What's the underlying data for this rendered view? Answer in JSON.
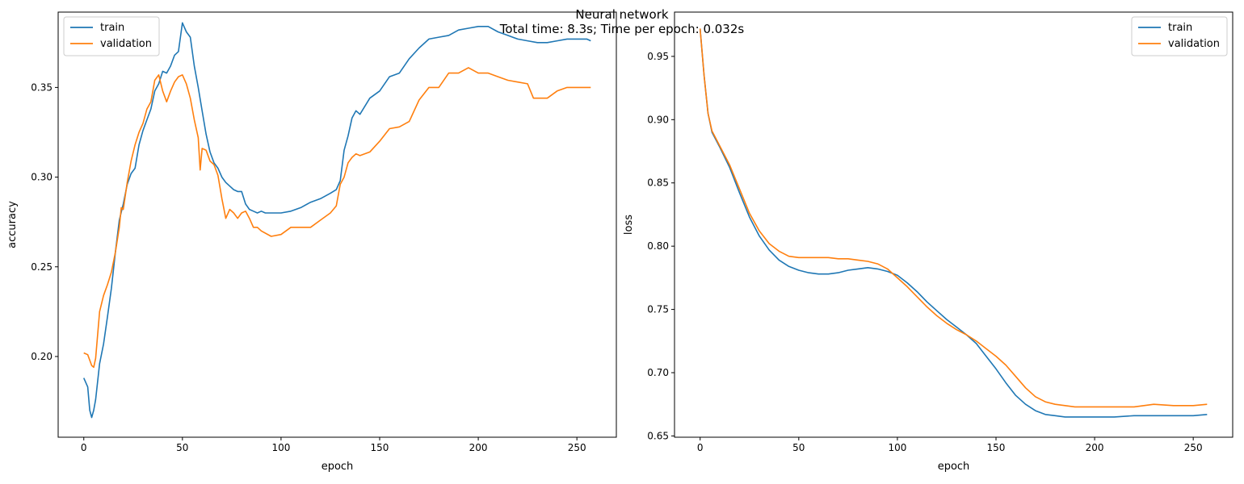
{
  "suptitle": {
    "line1": "Neural network",
    "line2": "Total time: 8.3s; Time per epoch: 0.032s"
  },
  "colors": {
    "train": "#1f77b4",
    "validation": "#ff7f0e"
  },
  "chart_data": [
    {
      "type": "line",
      "xlabel": "epoch",
      "ylabel": "accuracy",
      "xlim": [
        -13,
        270
      ],
      "ylim": [
        0.155,
        0.392
      ],
      "xticks": [
        0,
        50,
        100,
        150,
        200,
        250
      ],
      "yticks": [
        0.2,
        0.25,
        0.3,
        0.35
      ],
      "ytick_labels": [
        "0.20",
        "0.25",
        "0.30",
        "0.35"
      ],
      "legend": "top-left",
      "grid": false,
      "series": [
        {
          "name": "train",
          "x": [
            0,
            2,
            3,
            4,
            5,
            6,
            8,
            10,
            12,
            14,
            16,
            18,
            20,
            22,
            24,
            26,
            28,
            30,
            32,
            34,
            36,
            38,
            40,
            42,
            44,
            46,
            48,
            50,
            52,
            54,
            56,
            58,
            60,
            62,
            64,
            66,
            68,
            70,
            72,
            74,
            76,
            78,
            80,
            82,
            84,
            86,
            88,
            90,
            92,
            95,
            100,
            105,
            110,
            115,
            120,
            125,
            128,
            130,
            132,
            134,
            136,
            138,
            140,
            145,
            150,
            155,
            160,
            165,
            170,
            175,
            180,
            185,
            190,
            195,
            200,
            205,
            210,
            215,
            220,
            225,
            230,
            235,
            240,
            245,
            250,
            255,
            257
          ],
          "y": [
            0.188,
            0.183,
            0.17,
            0.166,
            0.17,
            0.176,
            0.196,
            0.207,
            0.222,
            0.238,
            0.258,
            0.276,
            0.285,
            0.296,
            0.302,
            0.305,
            0.318,
            0.326,
            0.332,
            0.338,
            0.348,
            0.352,
            0.359,
            0.358,
            0.362,
            0.368,
            0.37,
            0.386,
            0.381,
            0.378,
            0.362,
            0.35,
            0.337,
            0.324,
            0.314,
            0.308,
            0.305,
            0.3,
            0.297,
            0.295,
            0.293,
            0.292,
            0.292,
            0.285,
            0.282,
            0.281,
            0.28,
            0.281,
            0.28,
            0.28,
            0.28,
            0.281,
            0.283,
            0.286,
            0.288,
            0.291,
            0.293,
            0.298,
            0.315,
            0.323,
            0.333,
            0.337,
            0.335,
            0.344,
            0.348,
            0.356,
            0.358,
            0.366,
            0.372,
            0.377,
            0.378,
            0.379,
            0.382,
            0.383,
            0.384,
            0.384,
            0.381,
            0.379,
            0.377,
            0.376,
            0.375,
            0.375,
            0.376,
            0.377,
            0.377,
            0.377,
            0.376
          ]
        },
        {
          "name": "validation",
          "x": [
            0,
            2,
            4,
            5,
            6,
            8,
            10,
            12,
            14,
            16,
            18,
            19,
            20,
            22,
            24,
            26,
            28,
            30,
            32,
            34,
            36,
            38,
            40,
            42,
            44,
            46,
            48,
            50,
            52,
            54,
            56,
            58,
            59,
            60,
            62,
            64,
            66,
            68,
            70,
            72,
            74,
            76,
            78,
            80,
            82,
            84,
            86,
            88,
            90,
            95,
            100,
            105,
            110,
            115,
            120,
            125,
            128,
            130,
            132,
            134,
            136,
            138,
            140,
            145,
            150,
            155,
            160,
            165,
            170,
            175,
            180,
            185,
            190,
            195,
            200,
            205,
            210,
            215,
            220,
            225,
            228,
            230,
            235,
            240,
            245,
            250,
            255,
            257
          ],
          "y": [
            0.202,
            0.201,
            0.195,
            0.194,
            0.199,
            0.225,
            0.234,
            0.24,
            0.247,
            0.258,
            0.272,
            0.283,
            0.282,
            0.297,
            0.309,
            0.318,
            0.325,
            0.33,
            0.338,
            0.342,
            0.354,
            0.357,
            0.348,
            0.342,
            0.348,
            0.353,
            0.356,
            0.357,
            0.352,
            0.344,
            0.332,
            0.322,
            0.304,
            0.316,
            0.315,
            0.309,
            0.307,
            0.301,
            0.288,
            0.277,
            0.282,
            0.28,
            0.277,
            0.28,
            0.281,
            0.277,
            0.272,
            0.272,
            0.27,
            0.267,
            0.268,
            0.272,
            0.272,
            0.272,
            0.276,
            0.28,
            0.284,
            0.296,
            0.3,
            0.308,
            0.311,
            0.313,
            0.312,
            0.314,
            0.32,
            0.327,
            0.328,
            0.331,
            0.343,
            0.35,
            0.35,
            0.358,
            0.358,
            0.361,
            0.358,
            0.358,
            0.356,
            0.354,
            0.353,
            0.352,
            0.344,
            0.344,
            0.344,
            0.348,
            0.35,
            0.35,
            0.35,
            0.35
          ]
        }
      ]
    },
    {
      "type": "line",
      "xlabel": "epoch",
      "ylabel": "loss",
      "xlim": [
        -13,
        270
      ],
      "ylim": [
        0.649,
        0.985
      ],
      "xticks": [
        0,
        50,
        100,
        150,
        200,
        250
      ],
      "yticks": [
        0.65,
        0.7,
        0.75,
        0.8,
        0.85,
        0.9,
        0.95
      ],
      "ytick_labels": [
        "0.65",
        "0.70",
        "0.75",
        "0.80",
        "0.85",
        "0.90",
        "0.95"
      ],
      "legend": "top-right",
      "grid": false,
      "series": [
        {
          "name": "train",
          "x": [
            0,
            2,
            4,
            6,
            8,
            10,
            15,
            20,
            25,
            30,
            35,
            40,
            45,
            50,
            55,
            60,
            65,
            70,
            75,
            80,
            85,
            90,
            95,
            100,
            105,
            110,
            115,
            120,
            125,
            130,
            135,
            140,
            145,
            150,
            155,
            160,
            165,
            170,
            175,
            180,
            185,
            190,
            195,
            200,
            210,
            220,
            230,
            240,
            250,
            257
          ],
          "y": [
            0.972,
            0.935,
            0.905,
            0.89,
            0.884,
            0.878,
            0.862,
            0.842,
            0.823,
            0.808,
            0.797,
            0.789,
            0.784,
            0.781,
            0.779,
            0.778,
            0.778,
            0.779,
            0.781,
            0.782,
            0.783,
            0.782,
            0.78,
            0.777,
            0.771,
            0.764,
            0.756,
            0.749,
            0.742,
            0.736,
            0.73,
            0.723,
            0.713,
            0.703,
            0.692,
            0.682,
            0.675,
            0.67,
            0.667,
            0.666,
            0.665,
            0.665,
            0.665,
            0.665,
            0.665,
            0.666,
            0.666,
            0.666,
            0.666,
            0.667
          ]
        },
        {
          "name": "validation",
          "x": [
            0,
            2,
            4,
            6,
            8,
            10,
            15,
            20,
            25,
            30,
            35,
            40,
            45,
            50,
            55,
            60,
            65,
            70,
            75,
            80,
            85,
            90,
            95,
            100,
            105,
            110,
            115,
            120,
            125,
            130,
            135,
            140,
            145,
            150,
            155,
            160,
            165,
            170,
            175,
            180,
            185,
            190,
            195,
            200,
            210,
            220,
            230,
            240,
            250,
            257
          ],
          "y": [
            0.972,
            0.935,
            0.905,
            0.891,
            0.885,
            0.879,
            0.864,
            0.845,
            0.826,
            0.812,
            0.802,
            0.796,
            0.792,
            0.791,
            0.791,
            0.791,
            0.791,
            0.79,
            0.79,
            0.789,
            0.788,
            0.786,
            0.782,
            0.775,
            0.768,
            0.76,
            0.752,
            0.745,
            0.739,
            0.734,
            0.73,
            0.725,
            0.719,
            0.713,
            0.706,
            0.697,
            0.688,
            0.681,
            0.677,
            0.675,
            0.674,
            0.673,
            0.673,
            0.673,
            0.673,
            0.673,
            0.675,
            0.674,
            0.674,
            0.675
          ]
        }
      ]
    }
  ]
}
